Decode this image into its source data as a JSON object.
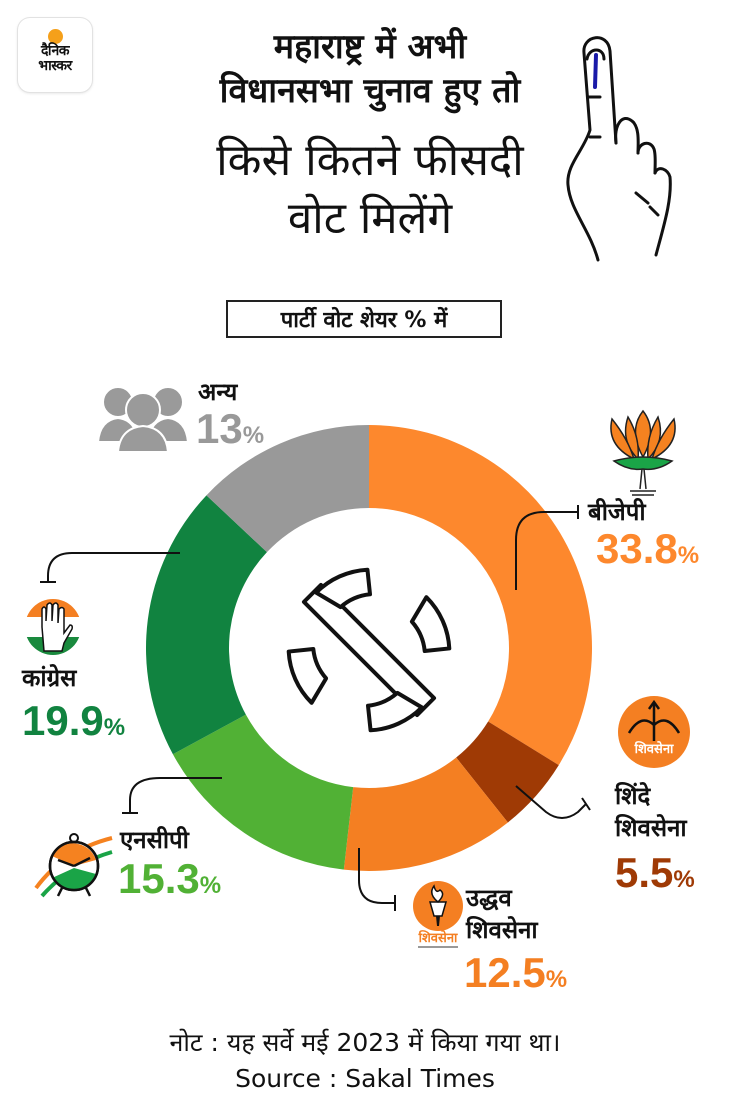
{
  "header": {
    "logo": {
      "line1": "दैनिक",
      "line2": "भास्कर",
      "dot_color": "#f5a01a"
    },
    "title_lines": [
      "महाराष्ट्र में अभी",
      "विधानसभा चुनाव हुए तो",
      "किसे कितने फीसदी",
      "वोट मिलेंगे"
    ],
    "icon": "inked-finger-icon"
  },
  "subtitle": "पार्टी वोट शेयर % में",
  "center_icon": "election-commission-emblem-icon",
  "parties": [
    {
      "id": "bjp",
      "name": "बीजेपी",
      "value": "33.8",
      "pct": "%",
      "color": "#fd882d",
      "icon": "lotus-icon"
    },
    {
      "id": "shinde",
      "name_l1": "शिंदे",
      "name_l2": "शिवसेना",
      "value": "5.5",
      "pct": "%",
      "color": "#9f3a05",
      "icon": "bow-arrow-icon",
      "icon_text": "शिवसेना"
    },
    {
      "id": "uddhav",
      "name_l1": "उद्धव",
      "name_l2": "शिवसेना",
      "value": "12.5",
      "pct": "%",
      "color": "#f47f22",
      "icon": "torch-icon",
      "icon_text": "शिवसेना"
    },
    {
      "id": "ncp",
      "name": "एनसीपी",
      "value": "15.3",
      "pct": "%",
      "color": "#51b135",
      "icon": "clock-icon"
    },
    {
      "id": "congress",
      "name": "कांग्रेस",
      "value": "19.9",
      "pct": "%",
      "color": "#118340",
      "icon": "hand-icon"
    },
    {
      "id": "other",
      "name": "अन्य",
      "value": "13",
      "pct": "%",
      "color": "#999999",
      "icon": "people-icon"
    }
  ],
  "footer": {
    "note": "नोट : यह सर्वे मई 2023 में किया गया था।",
    "source": "Source : Sakal Times"
  },
  "chart_data": {
    "type": "pie",
    "subtype": "donut",
    "title": "महाराष्ट्र में अभी विधानसभा चुनाव हुए तो किसे कितने फीसदी वोट मिलेंगे",
    "subtitle": "पार्टी वोट शेयर % में",
    "categories": [
      "बीजेपी",
      "शिंदे शिवसेना",
      "उद्धव शिवसेना",
      "एनसीपी",
      "कांग्रेस",
      "अन्य"
    ],
    "values": [
      33.8,
      5.5,
      12.5,
      15.3,
      19.9,
      13
    ],
    "colors": [
      "#fd882d",
      "#9f3a05",
      "#f47f22",
      "#51b135",
      "#118340",
      "#999999"
    ],
    "unit": "%",
    "start_angle": "12 o'clock, clockwise",
    "note": "नोट : यह सर्वे मई 2023 में किया गया था।",
    "source": "Source : Sakal Times"
  }
}
